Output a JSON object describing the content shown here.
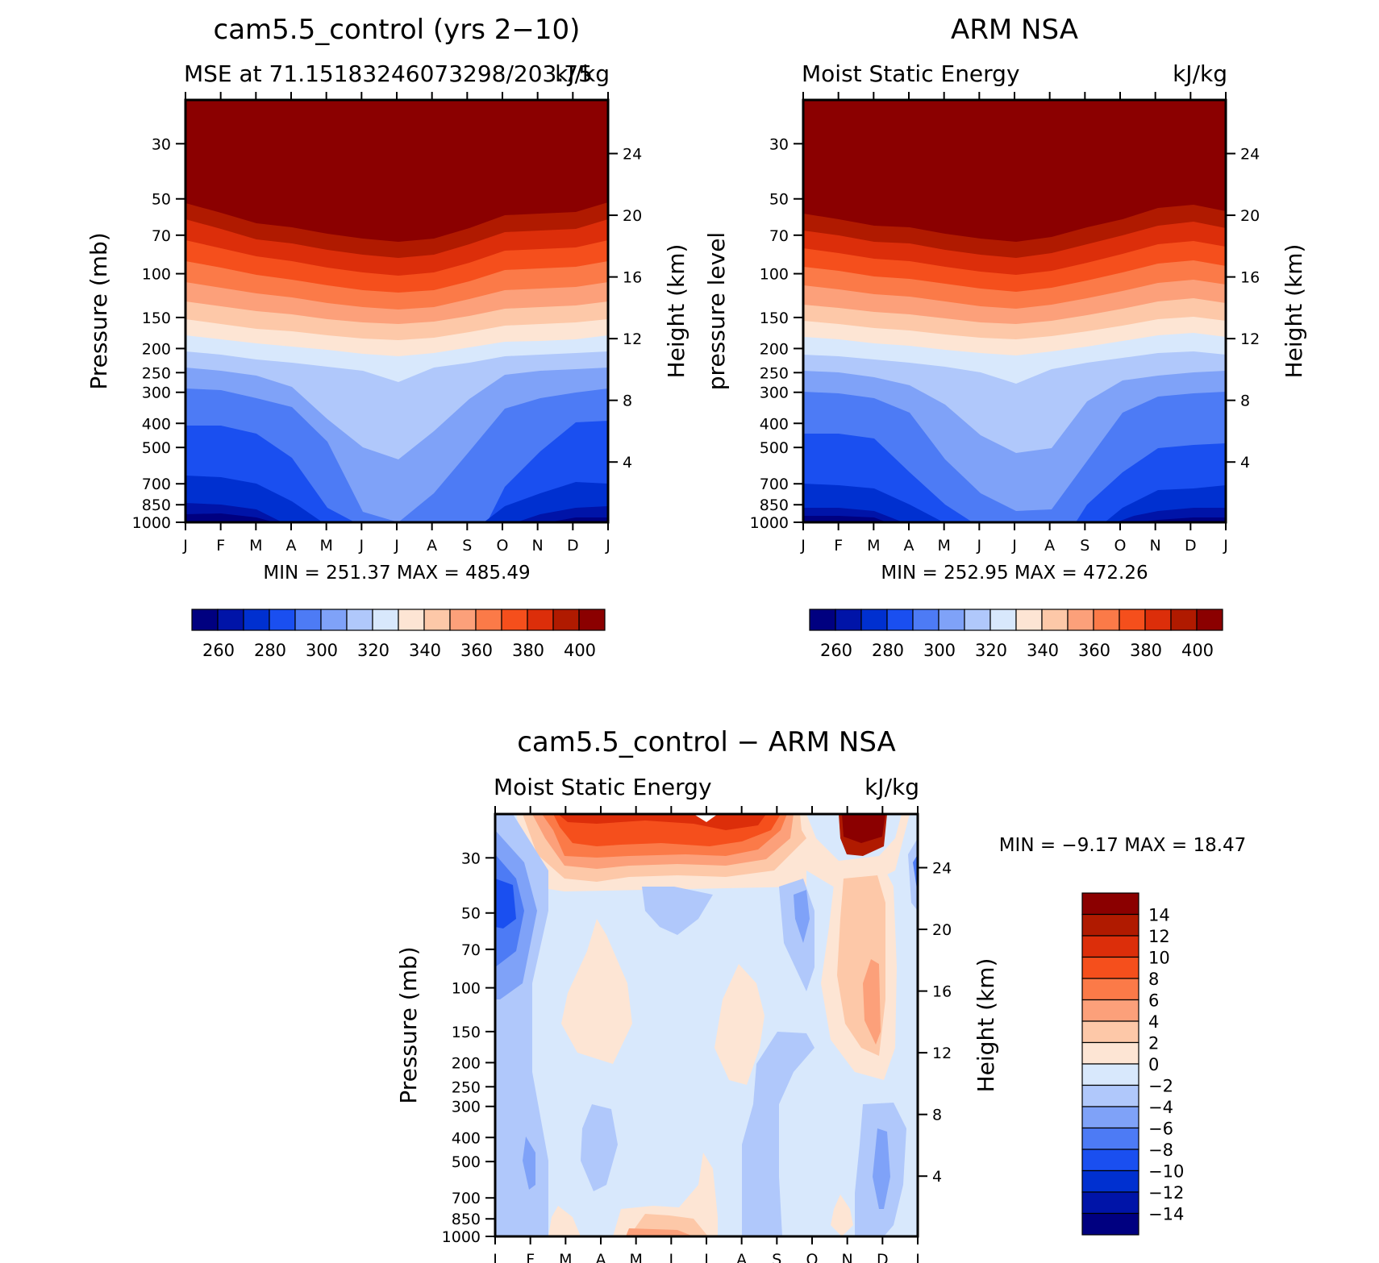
{
  "colors": {
    "levels": [
      "#000080",
      "#0014a8",
      "#0030d0",
      "#1a4ff0",
      "#4d7bf5",
      "#7fa2f8",
      "#b0c8fb",
      "#d8e8fc",
      "#fde5d4",
      "#fdc8a8",
      "#fca07a",
      "#fb7a48",
      "#f54f1c",
      "#dc2e0a",
      "#b01a00",
      "#8b0000"
    ],
    "axis": "#000000"
  },
  "chart_data": [
    {
      "type": "heatmap",
      "id": "model",
      "title": "cam5.5_control (yrs 2−10)",
      "subtitle_left": "MSE at 71.15183246073298/203.75",
      "subtitle_right": "kJ/kg",
      "ylabel": "Pressure (mb)",
      "ylabel_right": "Height (km)",
      "x_ticks": [
        "J",
        "F",
        "M",
        "A",
        "M",
        "J",
        "J",
        "A",
        "S",
        "O",
        "N",
        "D",
        "J"
      ],
      "y_ticks": [
        "30",
        "50",
        "70",
        "100",
        "150",
        "200",
        "250",
        "300",
        "400",
        "500",
        "700",
        "850",
        "1000"
      ],
      "height_ticks": [
        "24",
        "20",
        "16",
        "12",
        "8",
        "4"
      ],
      "minmax": "MIN = 251.37 MAX = 485.49",
      "colorbar_labels": [
        "260",
        "280",
        "300",
        "320",
        "340",
        "360",
        "380",
        "400"
      ],
      "colorbar_levels": [
        255,
        260,
        265,
        270,
        275,
        280,
        285,
        290,
        295,
        300,
        305,
        310,
        315,
        320,
        325,
        330,
        335,
        340,
        345,
        350,
        355,
        360,
        365,
        370,
        375,
        380,
        385,
        390,
        395,
        400
      ]
    },
    {
      "type": "heatmap",
      "id": "obs",
      "title": "ARM NSA",
      "subtitle_left": "Moist Static Energy",
      "subtitle_right": "kJ/kg",
      "ylabel": "pressure level",
      "ylabel_right": "Height (km)",
      "x_ticks": [
        "J",
        "F",
        "M",
        "A",
        "M",
        "J",
        "J",
        "A",
        "S",
        "O",
        "N",
        "D",
        "J"
      ],
      "y_ticks": [
        "30",
        "50",
        "70",
        "100",
        "150",
        "200",
        "250",
        "300",
        "400",
        "500",
        "700",
        "850",
        "1000"
      ],
      "height_ticks": [
        "24",
        "20",
        "16",
        "12",
        "8",
        "4"
      ],
      "minmax": "MIN = 252.95 MAX = 472.26",
      "colorbar_labels": [
        "260",
        "280",
        "300",
        "320",
        "340",
        "360",
        "380",
        "400"
      ]
    },
    {
      "type": "heatmap",
      "id": "diff",
      "title": "cam5.5_control − ARM NSA",
      "subtitle_left": "Moist Static Energy",
      "subtitle_right": "kJ/kg",
      "ylabel": "Pressure (mb)",
      "ylabel_right": "Height (km)",
      "x_ticks": [
        "J",
        "F",
        "M",
        "A",
        "M",
        "J",
        "J",
        "A",
        "S",
        "O",
        "N",
        "D",
        "J"
      ],
      "y_ticks": [
        "30",
        "50",
        "70",
        "100",
        "150",
        "200",
        "250",
        "300",
        "400",
        "500",
        "700",
        "850",
        "1000"
      ],
      "height_ticks": [
        "24",
        "20",
        "16",
        "12",
        "8",
        "4"
      ],
      "minmax": "MIN =   −9.17 MAX =   18.47",
      "colorbar_labels": [
        "14",
        "12",
        "10",
        "8",
        "6",
        "4",
        "2",
        "0",
        "−2",
        "−4",
        "−6",
        "−8",
        "−10",
        "−12",
        "−14"
      ],
      "colorbar_levels": [
        -14,
        -12,
        -10,
        -8,
        -6,
        -4,
        -2,
        0,
        2,
        4,
        6,
        8,
        10,
        12,
        14
      ]
    }
  ]
}
